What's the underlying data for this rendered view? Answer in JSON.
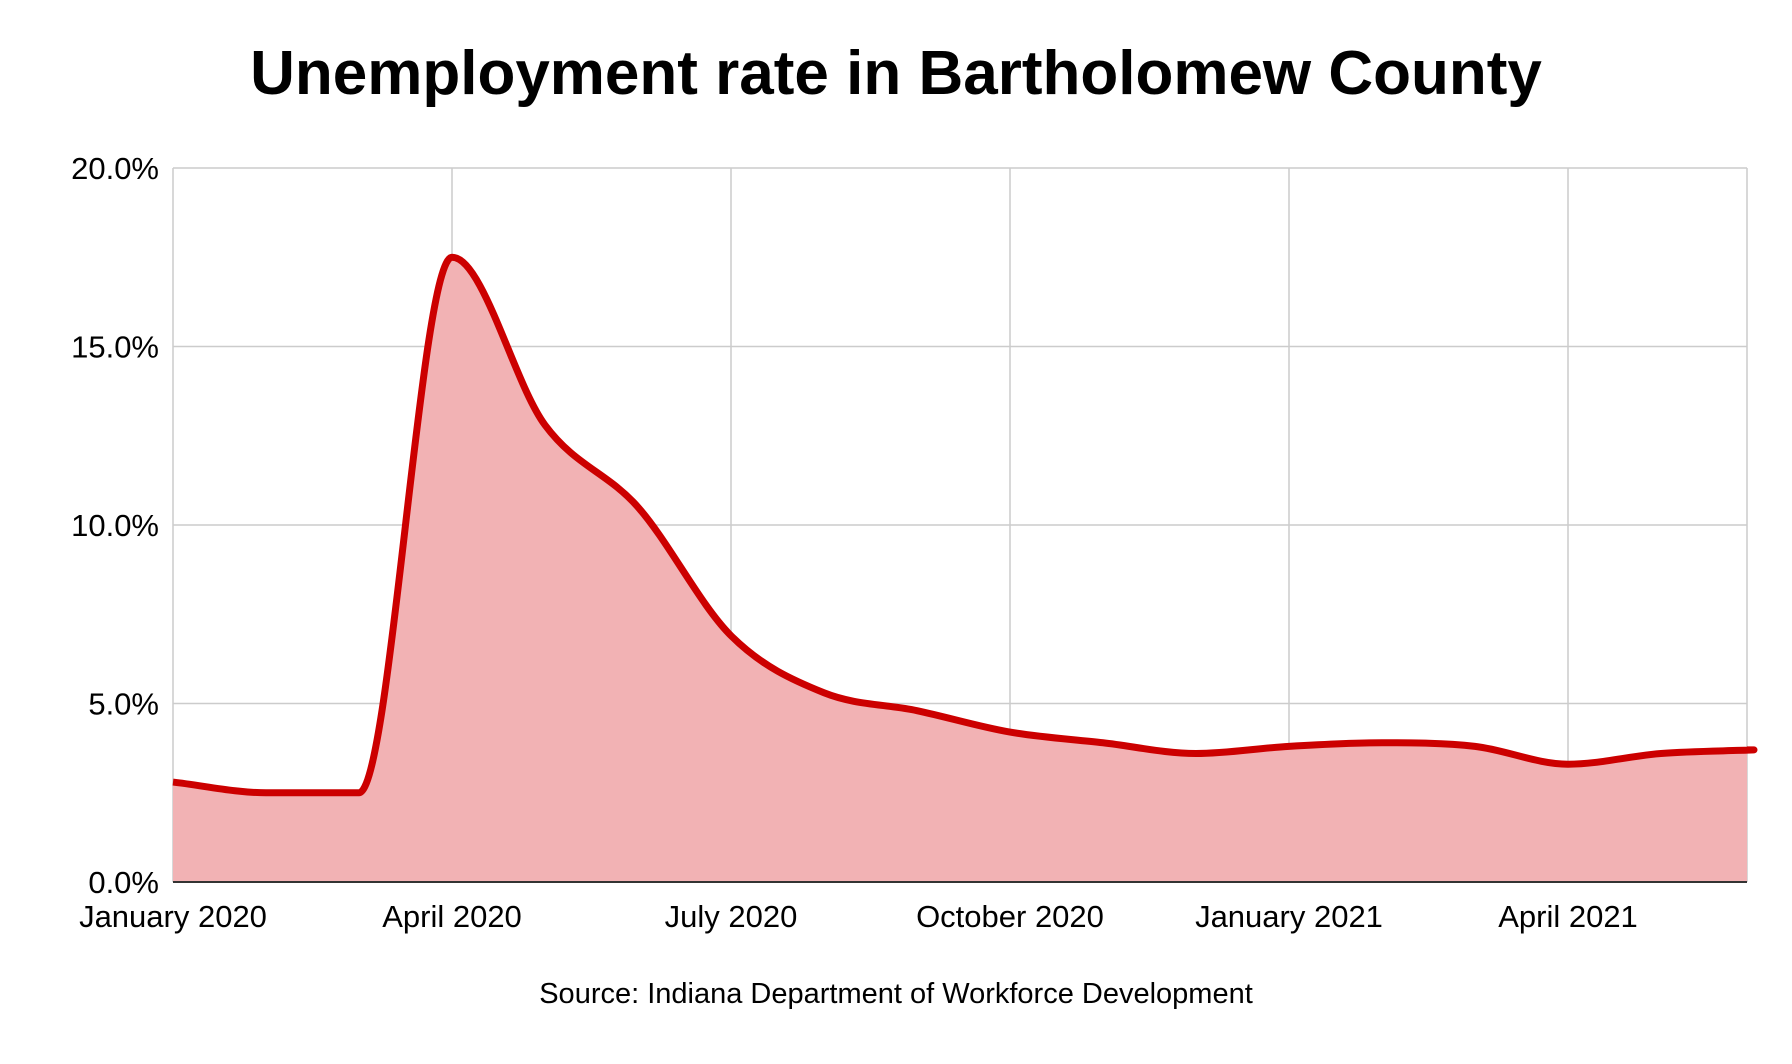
{
  "chart_data": {
    "type": "area",
    "title": "Unemployment rate in Bartholomew County",
    "source": "Source: Indiana Department of Workforce Development",
    "xlabel": "",
    "ylabel": "",
    "x_ticks": [
      "January 2020",
      "April 2020",
      "July 2020",
      "October 2020",
      "January 2021",
      "April 2021"
    ],
    "y_ticks": [
      "0.0%",
      "5.0%",
      "10.0%",
      "15.0%",
      "20.0%"
    ],
    "ylim": [
      0,
      20
    ],
    "grid": true,
    "legend": "none",
    "categories": [
      "Jan 2020",
      "Feb 2020",
      "Mar 2020",
      "Apr 2020",
      "May 2020",
      "Jun 2020",
      "Jul 2020",
      "Aug 2020",
      "Sep 2020",
      "Oct 2020",
      "Nov 2020",
      "Dec 2020",
      "Jan 2021",
      "Feb 2021",
      "Mar 2021",
      "Apr 2021",
      "May 2021",
      "Jun 2021"
    ],
    "values": [
      2.8,
      2.5,
      2.5,
      17.5,
      12.8,
      10.5,
      6.9,
      5.3,
      4.8,
      4.2,
      3.9,
      3.6,
      3.8,
      3.9,
      3.8,
      3.3,
      3.6,
      3.7
    ],
    "colors": {
      "line": "#cc0000",
      "fill": "#f2b2b4",
      "grid": "#cccccc",
      "axis": "#333333"
    }
  }
}
